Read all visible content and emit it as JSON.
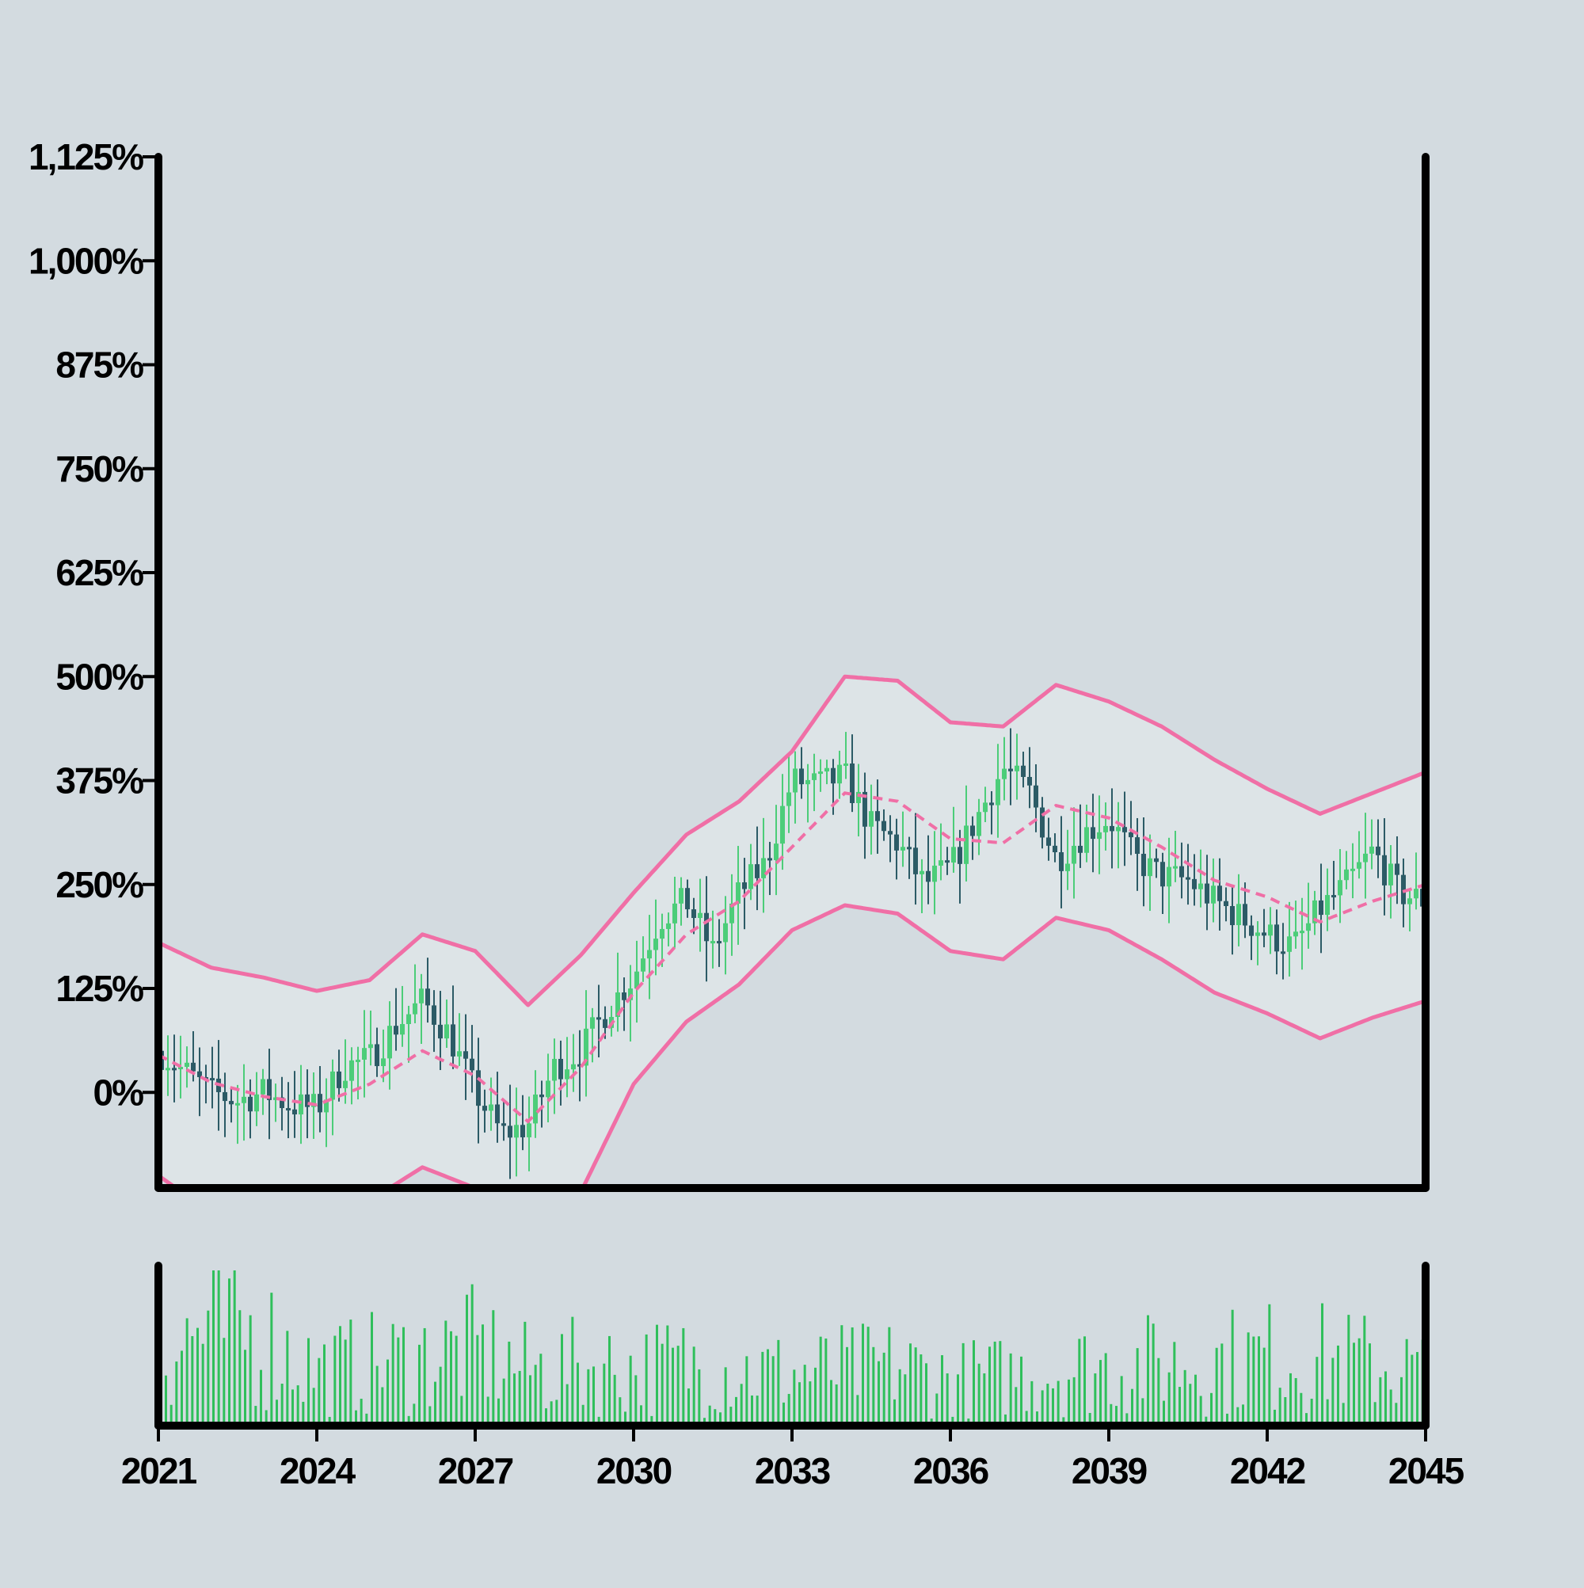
{
  "chart_data": {
    "type": "candlestick",
    "title": "",
    "xlabel": "",
    "ylabel": "",
    "x_ticks": [
      "2021",
      "2024",
      "2027",
      "2030",
      "2033",
      "2036",
      "2039",
      "2042",
      "2045"
    ],
    "x_range": [
      2021,
      2045
    ],
    "y_ticks": [
      "0%",
      "125%",
      "250%",
      "375%",
      "500%",
      "625%",
      "750%",
      "875%",
      "1,000%",
      "1,125%"
    ],
    "y_tick_values": [
      0,
      125,
      250,
      375,
      500,
      625,
      750,
      875,
      1000,
      1125
    ],
    "ylim": [
      -115,
      1125
    ],
    "grid": false,
    "legend": "none",
    "bands": {
      "center": {
        "style": "dashed",
        "x": [
          2021.0,
          2022.0,
          2023.0,
          2024.0,
          2025.0,
          2026.0,
          2027.0,
          2028.0,
          2029.0,
          2030.0,
          2031.0,
          2032.0,
          2033.0,
          2034.0,
          2035.0,
          2036.0,
          2037.0,
          2038.0,
          2039.0,
          2040.0,
          2041.0,
          2042.0,
          2043.0,
          2044.0,
          2045.0
        ],
        "values": [
          45,
          12,
          -5,
          -15,
          10,
          50,
          20,
          -35,
          30,
          120,
          190,
          230,
          295,
          360,
          350,
          305,
          300,
          345,
          330,
          295,
          255,
          235,
          205,
          230,
          250
        ]
      },
      "upper": {
        "x": [
          2021.0,
          2022.0,
          2023.0,
          2024.0,
          2025.0,
          2026.0,
          2027.0,
          2028.0,
          2029.0,
          2030.0,
          2031.0,
          2032.0,
          2033.0,
          2034.0,
          2035.0,
          2036.0,
          2037.0,
          2038.0,
          2039.0,
          2040.0,
          2041.0,
          2042.0,
          2043.0,
          2044.0,
          2045.0
        ],
        "values": [
          180,
          150,
          138,
          122,
          135,
          190,
          170,
          105,
          165,
          240,
          310,
          350,
          410,
          500,
          495,
          445,
          440,
          490,
          470,
          440,
          400,
          365,
          335,
          360,
          385
        ]
      },
      "lower": {
        "x": [
          2021.0,
          2022.0,
          2023.0,
          2024.0,
          2025.0,
          2026.0,
          2027.0,
          2028.0,
          2029.0,
          2030.0,
          2031.0,
          2032.0,
          2033.0,
          2034.0,
          2035.0,
          2036.0,
          2037.0,
          2038.0,
          2039.0,
          2040.0,
          2041.0,
          2042.0,
          2043.0,
          2044.0,
          2045.0
        ],
        "values": [
          -100,
          -145,
          -165,
          -165,
          -130,
          -90,
          -115,
          -160,
          -120,
          10,
          85,
          130,
          195,
          225,
          215,
          170,
          160,
          210,
          195,
          160,
          120,
          95,
          65,
          90,
          110
        ]
      }
    },
    "price": {
      "x": [
        2021.0,
        2021.5,
        2022.0,
        2022.5,
        2023.0,
        2023.5,
        2024.0,
        2024.5,
        2025.0,
        2025.5,
        2026.0,
        2026.5,
        2027.0,
        2027.5,
        2028.0,
        2028.5,
        2029.0,
        2029.5,
        2030.0,
        2030.5,
        2031.0,
        2031.5,
        2032.0,
        2032.5,
        2033.0,
        2033.5,
        2034.0,
        2034.5,
        2035.0,
        2035.5,
        2036.0,
        2036.5,
        2037.0,
        2037.5,
        2038.0,
        2038.5,
        2039.0,
        2039.5,
        2040.0,
        2040.5,
        2041.0,
        2041.5,
        2042.0,
        2042.5,
        2043.0,
        2043.5,
        2044.0,
        2044.5,
        2045.0
      ],
      "values": [
        50,
        25,
        0,
        -10,
        0,
        -15,
        -20,
        30,
        40,
        80,
        110,
        70,
        0,
        -50,
        -40,
        30,
        50,
        100,
        140,
        210,
        230,
        170,
        240,
        275,
        375,
        370,
        380,
        320,
        300,
        250,
        270,
        330,
        390,
        360,
        280,
        310,
        330,
        280,
        260,
        255,
        230,
        210,
        190,
        175,
        220,
        250,
        290,
        240,
        230
      ]
    },
    "volume": {
      "x": [
        2021.0,
        2022.0,
        2023.0,
        2024.0,
        2025.0,
        2026.0,
        2027.0,
        2028.0,
        2029.0,
        2030.0,
        2031.0,
        2032.0,
        2033.0,
        2034.0,
        2035.0,
        2036.0,
        2037.0,
        2038.0,
        2039.0,
        2040.0,
        2041.0,
        2042.0,
        2043.0,
        2044.0,
        2045.0
      ],
      "values": [
        0.62,
        0.78,
        0.72,
        0.45,
        0.5,
        0.55,
        0.62,
        0.45,
        0.48,
        0.46,
        0.5,
        0.45,
        0.42,
        0.45,
        0.48,
        0.38,
        0.4,
        0.45,
        0.48,
        0.5,
        0.52,
        0.56,
        0.55,
        0.5,
        0.45
      ]
    },
    "colors": {
      "background": "#d3dbe0",
      "band_fill": "#dde4e7",
      "band_line": "#f06fa6",
      "up_candle": "#4ccd79",
      "down_candle": "#2c5b66",
      "volume_bar": "#2fbf5b",
      "axis": "#000000"
    }
  }
}
